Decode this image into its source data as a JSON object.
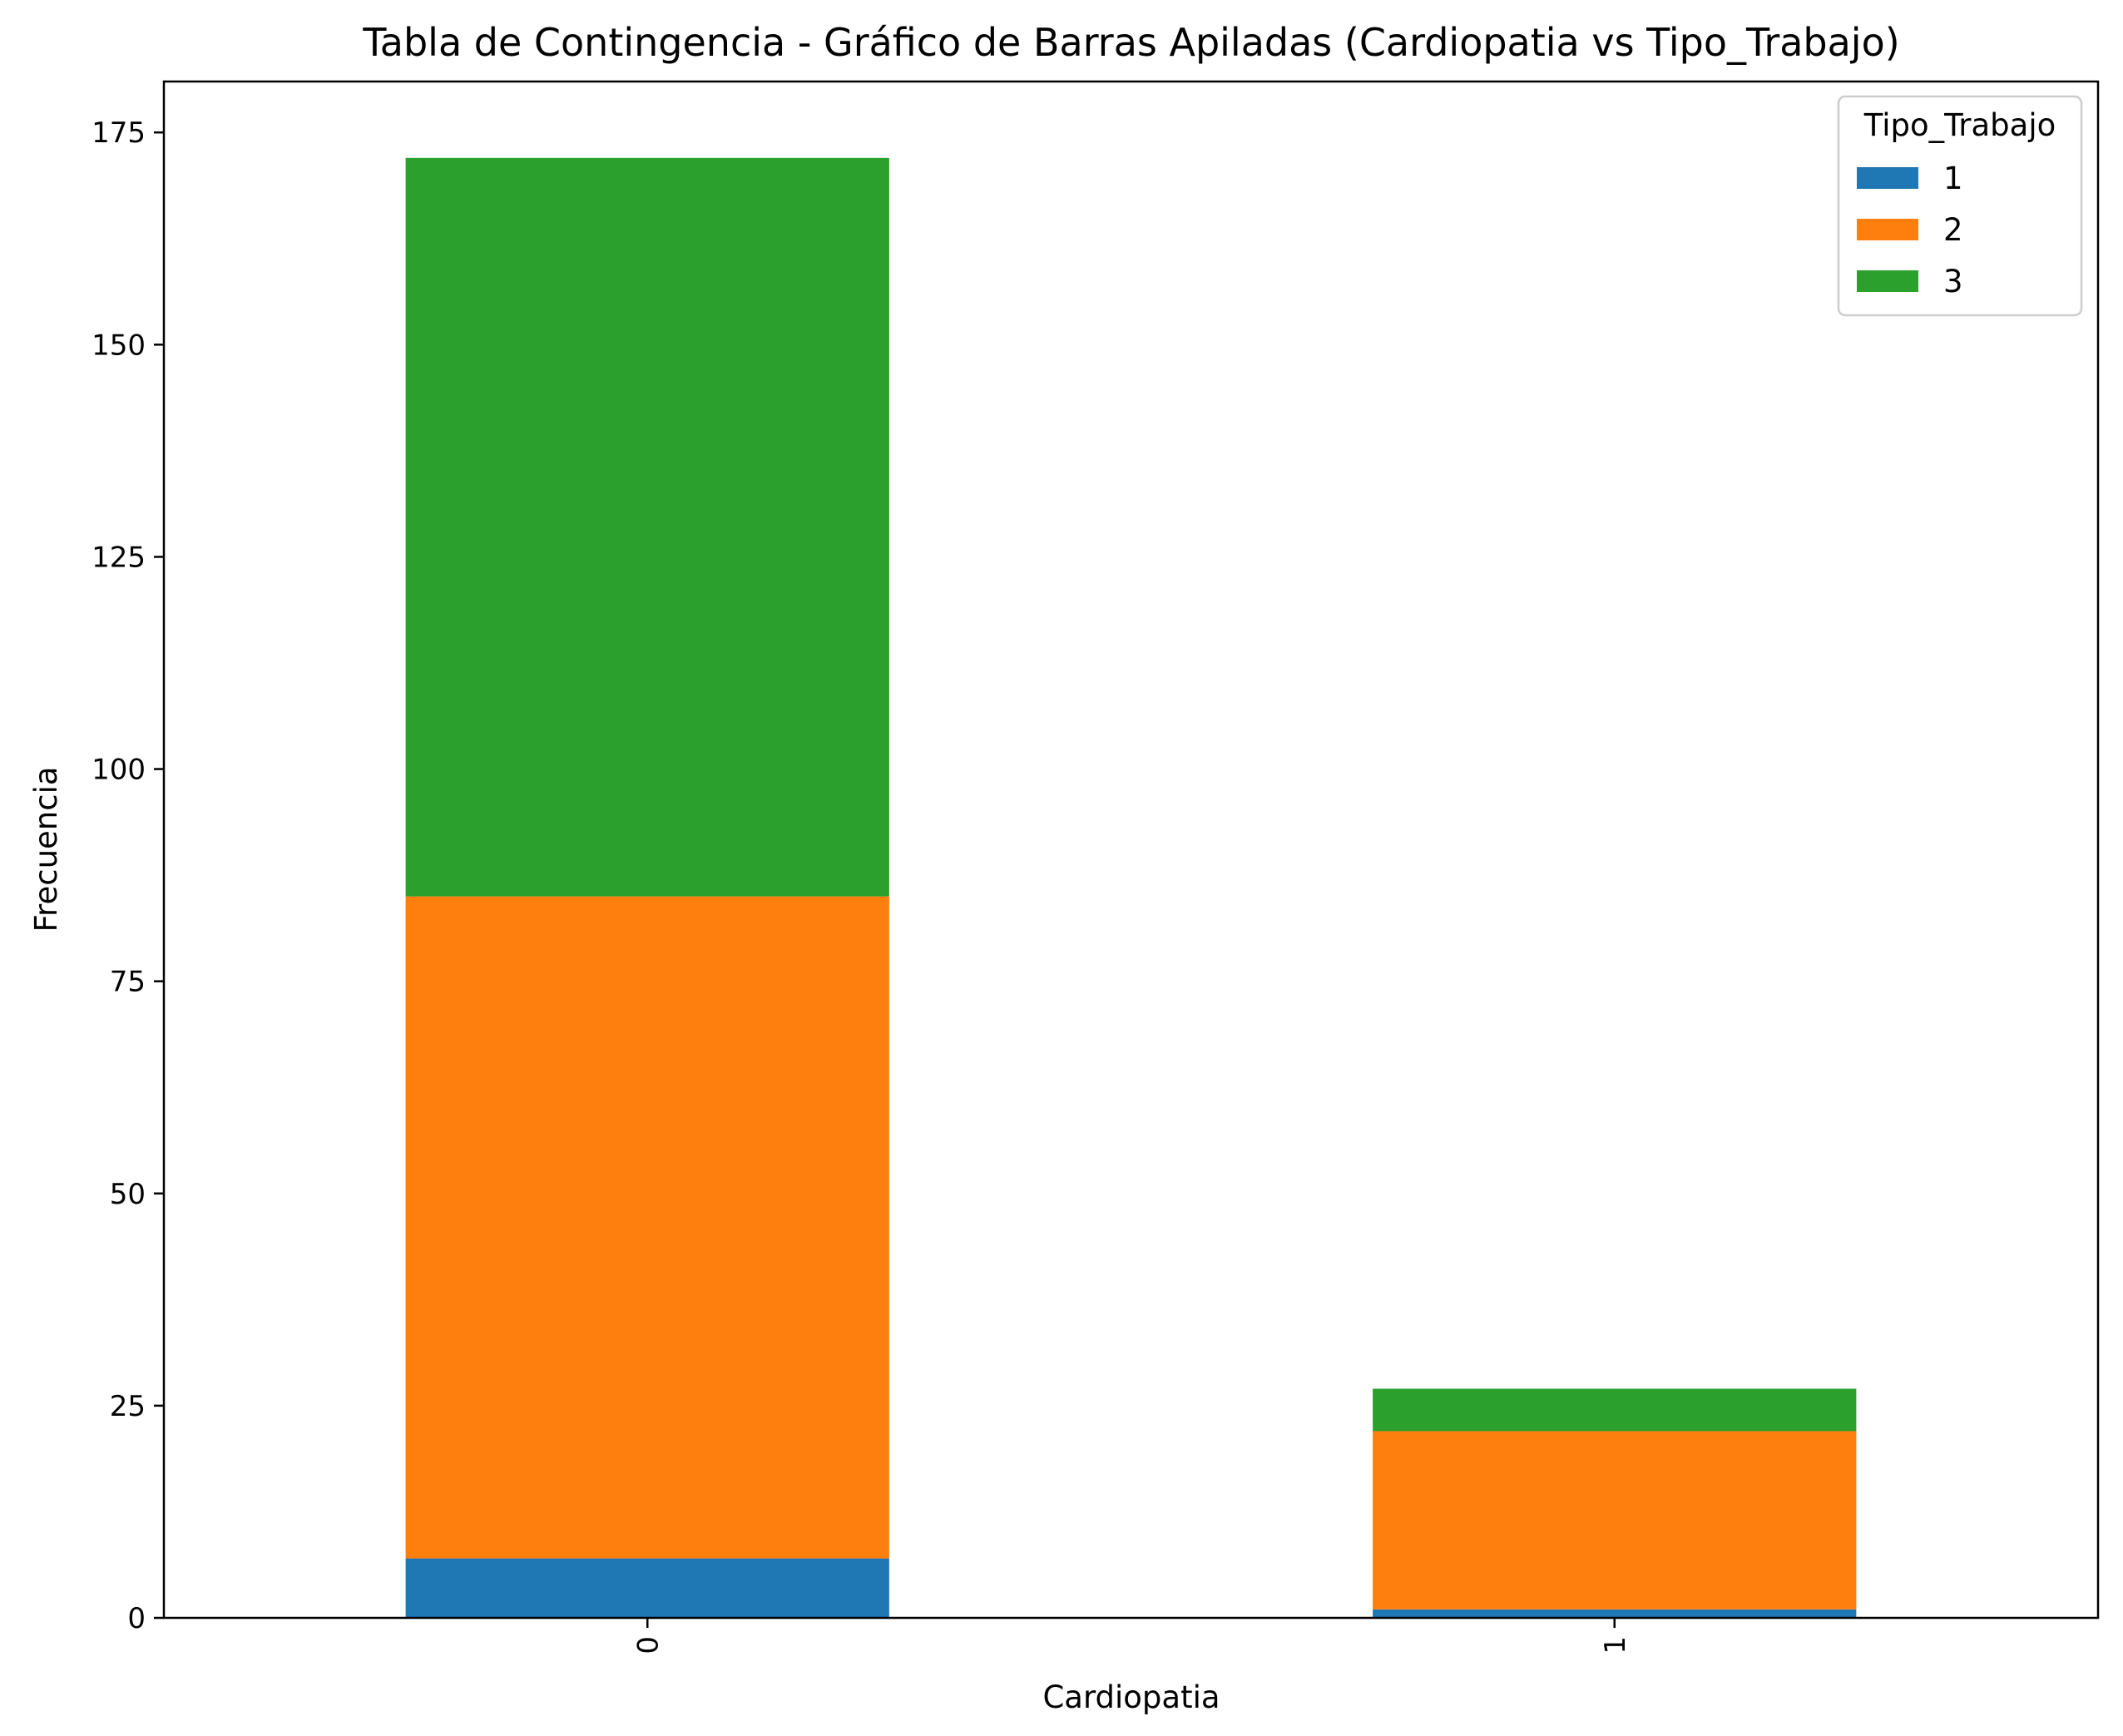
{
  "chart_data": {
    "type": "bar",
    "stacked": true,
    "title": "Tabla de Contingencia - Gráfico de Barras Apiladas (Cardiopatia vs Tipo_Trabajo)",
    "xlabel": "Cardiopatia",
    "ylabel": "Frecuencia",
    "categories": [
      "0",
      "1"
    ],
    "series": [
      {
        "name": "1",
        "values": [
          7,
          1
        ],
        "color": "#1f77b4"
      },
      {
        "name": "2",
        "values": [
          78,
          21
        ],
        "color": "#ff7f0e"
      },
      {
        "name": "3",
        "values": [
          87,
          5
        ],
        "color": "#2ca02c"
      }
    ],
    "ylim": [
      0,
      181
    ],
    "yticks": [
      0,
      25,
      50,
      75,
      100,
      125,
      150,
      175
    ],
    "legend_title": "Tipo_Trabajo",
    "legend_position": "top-right",
    "grid": false
  }
}
